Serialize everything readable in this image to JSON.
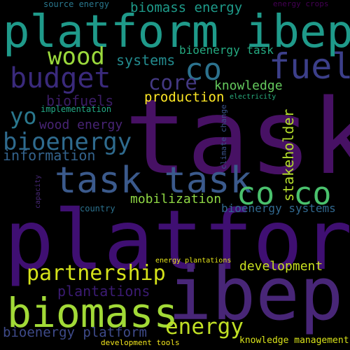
{
  "words": [
    {
      "text": "task",
      "color": "#471164",
      "vertical": false
    },
    {
      "text": "platform",
      "color": "#3f0f72",
      "vertical": false
    },
    {
      "text": "ibep",
      "color": "#482677",
      "vertical": false
    },
    {
      "text": "platform ibep",
      "color": "#1f9a8a",
      "vertical": false
    },
    {
      "text": "task task",
      "color": "#3b5a8c",
      "vertical": false
    },
    {
      "text": "biomass",
      "color": "#a2da37",
      "vertical": false
    },
    {
      "text": "co co",
      "color": "#4ac16d",
      "vertical": false
    },
    {
      "text": "co",
      "color": "#2c728e",
      "vertical": false
    },
    {
      "text": "fuel",
      "color": "#3c3f8a",
      "vertical": false
    },
    {
      "text": "budget",
      "color": "#3a2a7c",
      "vertical": false
    },
    {
      "text": "wood",
      "color": "#9bd93c",
      "vertical": false
    },
    {
      "text": "bioenergy",
      "color": "#2f6b8e",
      "vertical": false
    },
    {
      "text": "partnership",
      "color": "#d4e21a",
      "vertical": false
    },
    {
      "text": "energy",
      "color": "#c0df25",
      "vertical": false
    },
    {
      "text": "core",
      "color": "#443983",
      "vertical": false
    },
    {
      "text": "yo",
      "color": "#2a788e",
      "vertical": false
    },
    {
      "text": "information",
      "color": "#33638d",
      "vertical": false
    },
    {
      "text": "development",
      "color": "#c8e020",
      "vertical": false
    },
    {
      "text": "stakeholder",
      "color": "#b5de2b",
      "vertical": true
    },
    {
      "text": "biofuels",
      "color": "#3b1c66",
      "vertical": false
    },
    {
      "text": "wood energy",
      "color": "#482475",
      "vertical": false
    },
    {
      "text": "systems",
      "color": "#238a8d",
      "vertical": false
    },
    {
      "text": "bioenergy task",
      "color": "#25ab82",
      "vertical": false
    },
    {
      "text": "knowledge",
      "color": "#65cb5e",
      "vertical": false
    },
    {
      "text": "production",
      "color": "#fde725",
      "vertical": false
    },
    {
      "text": "mobilization",
      "color": "#8fd744",
      "vertical": false
    },
    {
      "text": "plantations",
      "color": "#3b1b72",
      "vertical": false
    },
    {
      "text": "bioenergy platform",
      "color": "#3e4a89",
      "vertical": false
    },
    {
      "text": "bioenergy systems",
      "color": "#31688e",
      "vertical": false
    },
    {
      "text": "biomass energy",
      "color": "#1e9b8a",
      "vertical": false
    },
    {
      "text": "source energy",
      "color": "#2a788e",
      "vertical": false
    },
    {
      "text": "energy crops",
      "color": "#440154",
      "vertical": false
    },
    {
      "text": "implementation",
      "color": "#22a884",
      "vertical": false
    },
    {
      "text": "electricity",
      "color": "#29af7f",
      "vertical": false
    },
    {
      "text": "climate change",
      "color": "#3b528b",
      "vertical": true
    },
    {
      "text": "country",
      "color": "#2c728e",
      "vertical": false
    },
    {
      "text": "capacity",
      "color": "#482878",
      "vertical": true
    },
    {
      "text": "energy plantations",
      "color": "#e5e419",
      "vertical": false
    },
    {
      "text": "knowledge management",
      "color": "#d8e219",
      "vertical": false
    },
    {
      "text": "development tools",
      "color": "#f1e51d",
      "vertical": false
    }
  ]
}
